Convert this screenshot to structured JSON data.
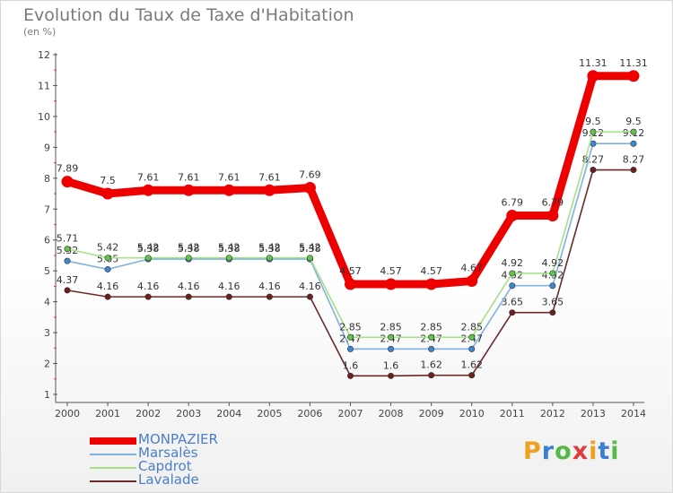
{
  "header": {
    "title": "Evolution du Taux de Taxe d'Habitation",
    "subtitle": "(en %)"
  },
  "logo": {
    "letters": [
      "P",
      "r",
      "o",
      "x",
      "i",
      "t",
      "i"
    ],
    "colors": [
      "#f0a020",
      "#3a7fd5",
      "#56b847",
      "#e03c3c",
      "#f0a020",
      "#3a7fd5",
      "#56b847"
    ]
  },
  "chart_data": {
    "type": "line",
    "title": "Evolution du Taux de Taxe d'Habitation",
    "ylabel": "(en %)",
    "xlabel": "",
    "ylim": [
      1,
      12
    ],
    "yticks": [
      "1",
      "2",
      "3",
      "4",
      "5",
      "6",
      "7",
      "8",
      "9",
      "10",
      "11",
      "12"
    ],
    "categories": [
      "2000",
      "2001",
      "2002",
      "2003",
      "2004",
      "2005",
      "2006",
      "2007",
      "2008",
      "2009",
      "2010",
      "2011",
      "2012",
      "2013",
      "2014"
    ],
    "series": [
      {
        "name": "Lavalade",
        "color": "#6b2a2a",
        "marker": "#6b1f1f",
        "values": [
          4.37,
          4.16,
          4.16,
          4.16,
          4.16,
          4.16,
          4.16,
          1.6,
          1.6,
          1.62,
          1.62,
          3.65,
          3.65,
          8.27,
          8.27
        ],
        "labels": [
          "4.37",
          "4.16",
          "4.16",
          "4.16",
          "4.16",
          "4.16",
          "4.16",
          "1.6",
          "1.6",
          "1.62",
          "1.62",
          "3.65",
          "3.65",
          "8.27",
          "8.27"
        ]
      },
      {
        "name": "Marsalès",
        "color": "#7fb2de",
        "marker": "#3d86d0",
        "values": [
          5.32,
          5.05,
          5.38,
          5.38,
          5.38,
          5.38,
          5.38,
          2.47,
          2.47,
          2.47,
          2.47,
          4.52,
          4.52,
          9.12,
          9.12
        ],
        "labels": [
          "5.32",
          "5.05",
          "5.38",
          "5.38",
          "5.38",
          "5.38",
          "5.38",
          "2.47",
          "2.47",
          "2.47",
          "2.47",
          "4.52",
          "4.52",
          "9.12",
          "9.12"
        ]
      },
      {
        "name": "Capdrot",
        "color": "#a8e08a",
        "marker": "#62c44a",
        "values": [
          5.71,
          5.42,
          5.42,
          5.42,
          5.42,
          5.42,
          5.42,
          2.85,
          2.85,
          2.85,
          2.85,
          4.92,
          4.92,
          9.5,
          9.5
        ],
        "labels": [
          "5.71",
          "5.42",
          "5.42",
          "5.42",
          "5.42",
          "5.42",
          "5.42",
          "2.85",
          "2.85",
          "2.85",
          "2.85",
          "4.92",
          "4.92",
          "9.5",
          "9.5"
        ]
      },
      {
        "name": "MONPAZIER",
        "color": "#ee0000",
        "marker": "#ee0000",
        "values": [
          7.89,
          7.5,
          7.61,
          7.61,
          7.61,
          7.61,
          7.69,
          4.57,
          4.57,
          4.57,
          4.67,
          6.79,
          6.79,
          11.31,
          11.31
        ],
        "labels": [
          "7.89",
          "7.5",
          "7.61",
          "7.61",
          "7.61",
          "7.61",
          "7.69",
          "4.57",
          "4.57",
          "4.57",
          "4.67",
          "6.79",
          "6.79",
          "11.31",
          "11.31"
        ]
      }
    ],
    "legend": [
      "MONPAZIER",
      "Marsalès",
      "Capdrot",
      "Lavalade"
    ],
    "legend_position": "bottom-left",
    "grid": false
  }
}
